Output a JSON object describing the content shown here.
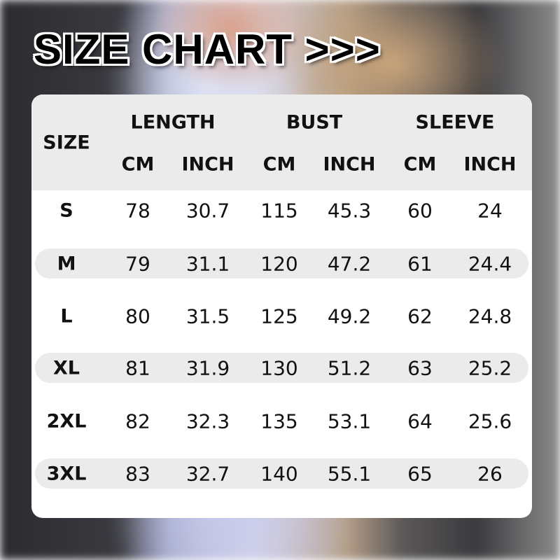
{
  "title": "SIZE CHART >>>",
  "table": {
    "size_header": "SIZE",
    "groups": [
      "LENGTH",
      "BUST",
      "SLEEVE"
    ],
    "units": [
      "CM",
      "INCH",
      "CM",
      "INCH",
      "CM",
      "INCH"
    ],
    "rows": [
      [
        "S",
        "78",
        "30.7",
        "115",
        "45.3",
        "60",
        "24"
      ],
      [
        "M",
        "79",
        "31.1",
        "120",
        "47.2",
        "61",
        "24.4"
      ],
      [
        "L",
        "80",
        "31.5",
        "125",
        "49.2",
        "62",
        "24.8"
      ],
      [
        "XL",
        "81",
        "31.9",
        "130",
        "51.2",
        "63",
        "25.2"
      ],
      [
        "2XL",
        "82",
        "32.3",
        "135",
        "53.1",
        "64",
        "25.6"
      ],
      [
        "3XL",
        "83",
        "32.7",
        "140",
        "55.1",
        "65",
        "26"
      ]
    ]
  }
}
